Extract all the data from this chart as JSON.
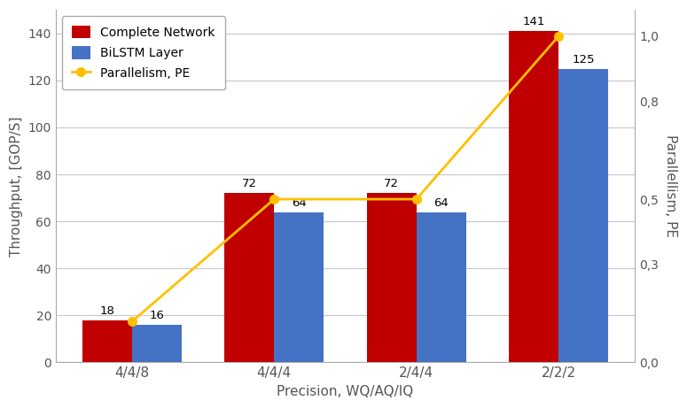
{
  "categories": [
    "4/4/8",
    "4/4/4",
    "2/4/4",
    "2/2/2"
  ],
  "complete_network": [
    18,
    72,
    72,
    141
  ],
  "bilstm_layer": [
    16,
    64,
    64,
    125
  ],
  "parallelism": [
    0.125,
    0.5,
    0.5,
    1.0
  ],
  "bar_color_red": "#c00000",
  "bar_color_blue": "#4472c4",
  "line_color": "#ffc000",
  "xlabel": "Precision, WQ/AQ/IQ",
  "ylabel_left": "Throughput, [GOP/S]",
  "ylabel_right": "Parallellism, PE",
  "ylim_left": [
    0,
    150
  ],
  "ylim_right": [
    0.0,
    1.08
  ],
  "yticks_left": [
    0,
    20,
    40,
    60,
    80,
    100,
    120,
    140
  ],
  "yticks_right": [
    0.0,
    0.3,
    0.5,
    0.8,
    1.0
  ],
  "ytick_labels_right": [
    "0,0",
    "0,3",
    "0,5",
    "0,8",
    "1,0"
  ],
  "legend_labels": [
    "Complete Network",
    "BiLSTM Layer",
    "Parallelism, PE"
  ],
  "bar_width": 0.35,
  "background_color": "#ffffff",
  "grid_color": "#c8c8c8"
}
